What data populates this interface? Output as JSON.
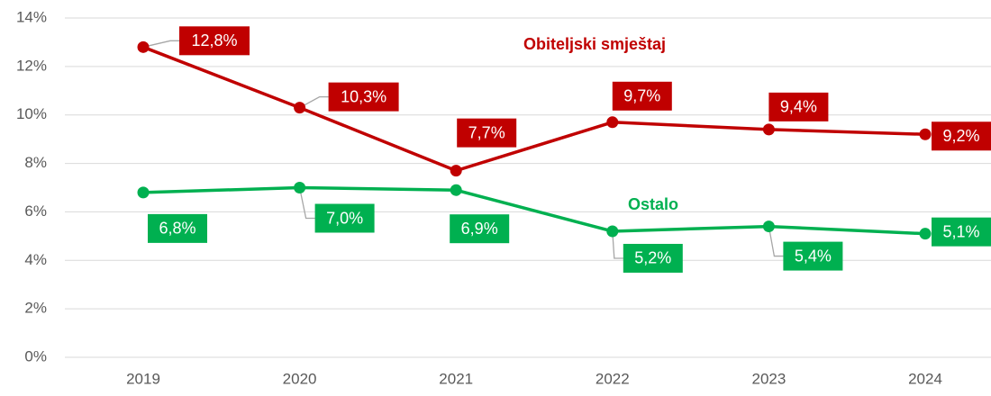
{
  "chart_data": {
    "type": "line",
    "categories": [
      "2019",
      "2020",
      "2021",
      "2022",
      "2023",
      "2024"
    ],
    "series": [
      {
        "name": "Obiteljski smještaj",
        "color": "#c00000",
        "values": [
          12.8,
          10.3,
          7.7,
          9.7,
          9.4,
          9.2
        ],
        "value_labels": [
          "12,8%",
          "10,3%",
          "7,7%",
          "9,7%",
          "9,4%",
          "9,2%"
        ]
      },
      {
        "name": "Ostalo",
        "color": "#00b050",
        "values": [
          6.8,
          7.0,
          6.9,
          5.2,
          5.4,
          5.1
        ],
        "value_labels": [
          "6,8%",
          "7,0%",
          "6,9%",
          "5,2%",
          "5,4%",
          "5,1%"
        ]
      }
    ],
    "ylim": [
      0,
      14
    ],
    "yticks": [
      {
        "value": 0,
        "label": "0%"
      },
      {
        "value": 2,
        "label": "2%"
      },
      {
        "value": 4,
        "label": "4%"
      },
      {
        "value": 6,
        "label": "6%"
      },
      {
        "value": 8,
        "label": "8%"
      },
      {
        "value": 10,
        "label": "10%"
      },
      {
        "value": 12,
        "label": "12%"
      },
      {
        "value": 14,
        "label": "14%"
      }
    ],
    "grid": true
  }
}
